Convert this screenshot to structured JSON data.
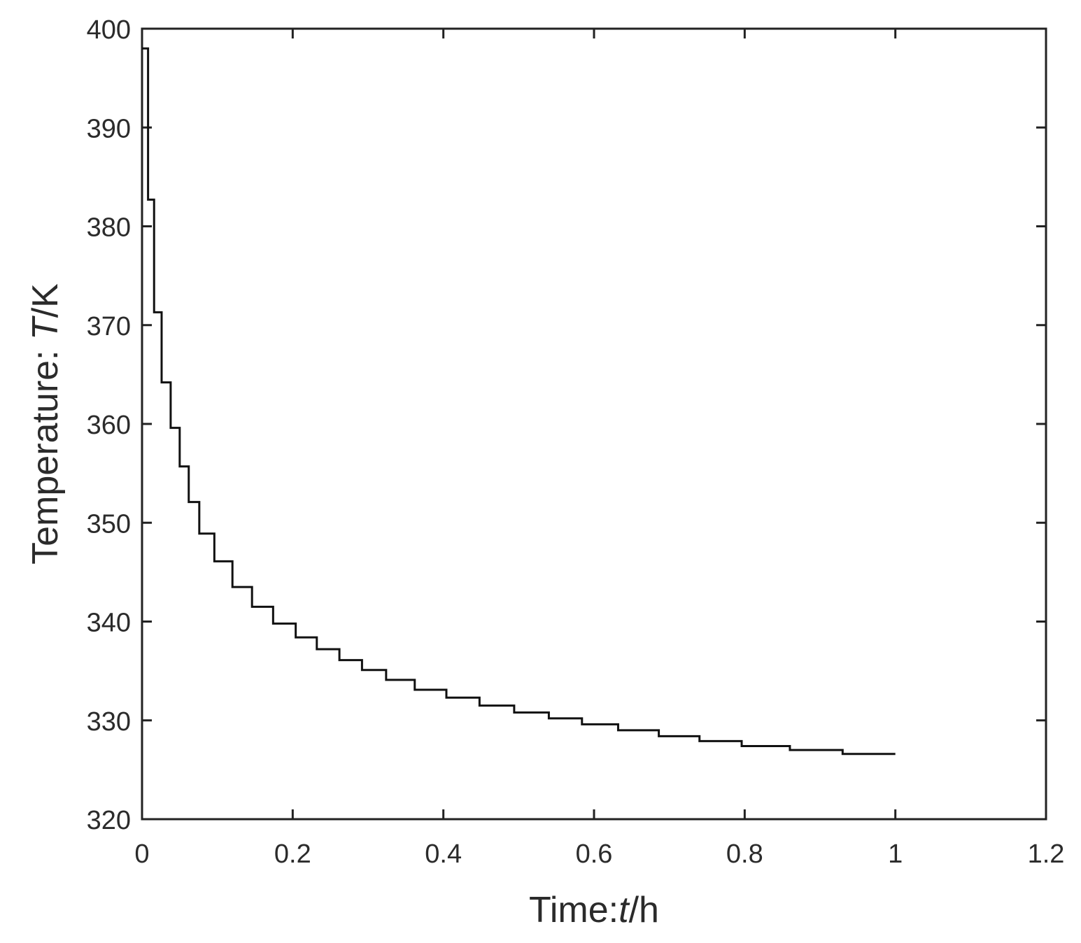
{
  "chart_data": {
    "type": "line",
    "title": "",
    "xlabel": "Time:t/h",
    "xlabel_parts": {
      "prefix": "Time:",
      "var": "t",
      "suffix": "/h"
    },
    "ylabel": "Temperature: T/K",
    "ylabel_parts": {
      "prefix": "Temperature: ",
      "var": "T",
      "suffix": "/K"
    },
    "xlim": [
      0,
      1.2
    ],
    "ylim": [
      320,
      400
    ],
    "xticks": [
      0,
      0.2,
      0.4,
      0.6,
      0.8,
      1,
      1.2
    ],
    "xtick_labels": [
      "0",
      "0.2",
      "0.4",
      "0.6",
      "0.8",
      "1",
      "1.2"
    ],
    "yticks": [
      320,
      330,
      340,
      350,
      360,
      370,
      380,
      390,
      400
    ],
    "ytick_labels": [
      "320",
      "330",
      "340",
      "350",
      "360",
      "370",
      "380",
      "390",
      "400"
    ],
    "grid": false,
    "legend": "none",
    "line_style": "step",
    "line_color": "#111111",
    "series": [
      {
        "x": [
          0,
          0.008,
          0.016,
          0.026,
          0.038,
          0.05,
          0.062,
          0.076,
          0.096,
          0.12,
          0.146,
          0.174,
          0.204,
          0.232,
          0.262,
          0.292,
          0.324,
          0.362,
          0.404,
          0.448,
          0.494,
          0.54,
          0.584,
          0.632,
          0.686,
          0.74,
          0.796,
          0.86,
          0.93,
          1.0
        ],
        "y": [
          398,
          382.7,
          371.3,
          364.2,
          359.6,
          355.7,
          352.1,
          348.9,
          346.1,
          343.5,
          341.5,
          339.8,
          338.4,
          337.2,
          336.1,
          335.1,
          334.1,
          333.1,
          332.3,
          331.5,
          330.8,
          330.2,
          329.6,
          329.0,
          328.4,
          327.9,
          327.4,
          327.0,
          326.6,
          326.6
        ]
      }
    ]
  }
}
